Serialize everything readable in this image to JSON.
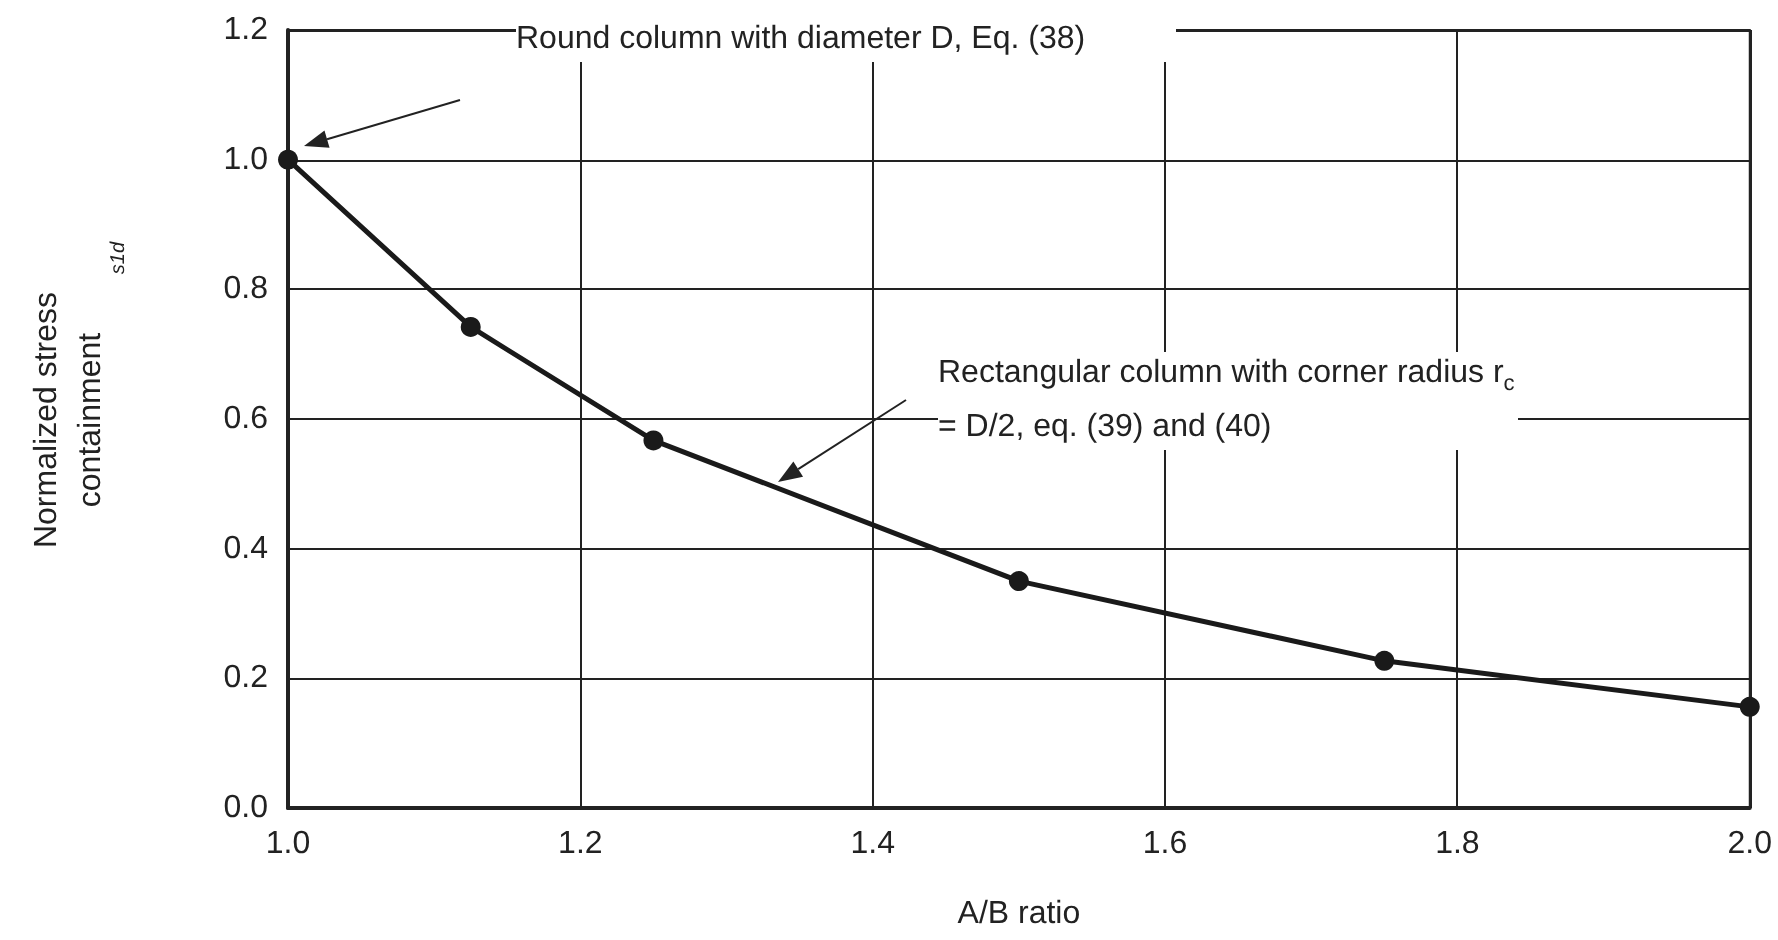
{
  "chart_data": {
    "type": "line",
    "xlabel": "A/B ratio",
    "ylabel": "Normalized stress containment",
    "x": [
      1.0,
      1.125,
      1.25,
      1.5,
      1.75,
      2.0
    ],
    "series": [
      {
        "color": "#1a1a1a",
        "values": [
          1.0,
          0.742,
          0.567,
          0.35,
          0.227,
          0.156
        ]
      }
    ],
    "xlim": [
      1.0,
      2.0
    ],
    "xticks": [
      {
        "value": 1.0,
        "label": "1.0"
      },
      {
        "value": 1.2,
        "label": "1.2"
      },
      {
        "value": 1.4,
        "label": "1.4"
      },
      {
        "value": 1.6,
        "label": "1.6"
      },
      {
        "value": 1.8,
        "label": "1.8"
      },
      {
        "value": 2.0,
        "label": "2.0"
      }
    ],
    "ylim": [
      0,
      1.2
    ],
    "yticks": [
      {
        "value": 0,
        "label": "0.0"
      },
      {
        "value": 0.2,
        "label": "0.2"
      },
      {
        "value": 0.4,
        "label": "0.4"
      },
      {
        "value": 0.6,
        "label": "0.6"
      },
      {
        "value": 0.8,
        "label": "0.8"
      },
      {
        "value": 1.0,
        "label": "1.0"
      },
      {
        "value": 1.2,
        "label": "1.2"
      }
    ],
    "grid": true,
    "marker": "circle",
    "line_style": "solid",
    "annotations": [
      "Round column with diameter D, Eq. (38)",
      "Rectangular column with corner radius r$_{c}$ = D/2, eq. (39) and (40)",
      "s1d"
    ]
  }
}
